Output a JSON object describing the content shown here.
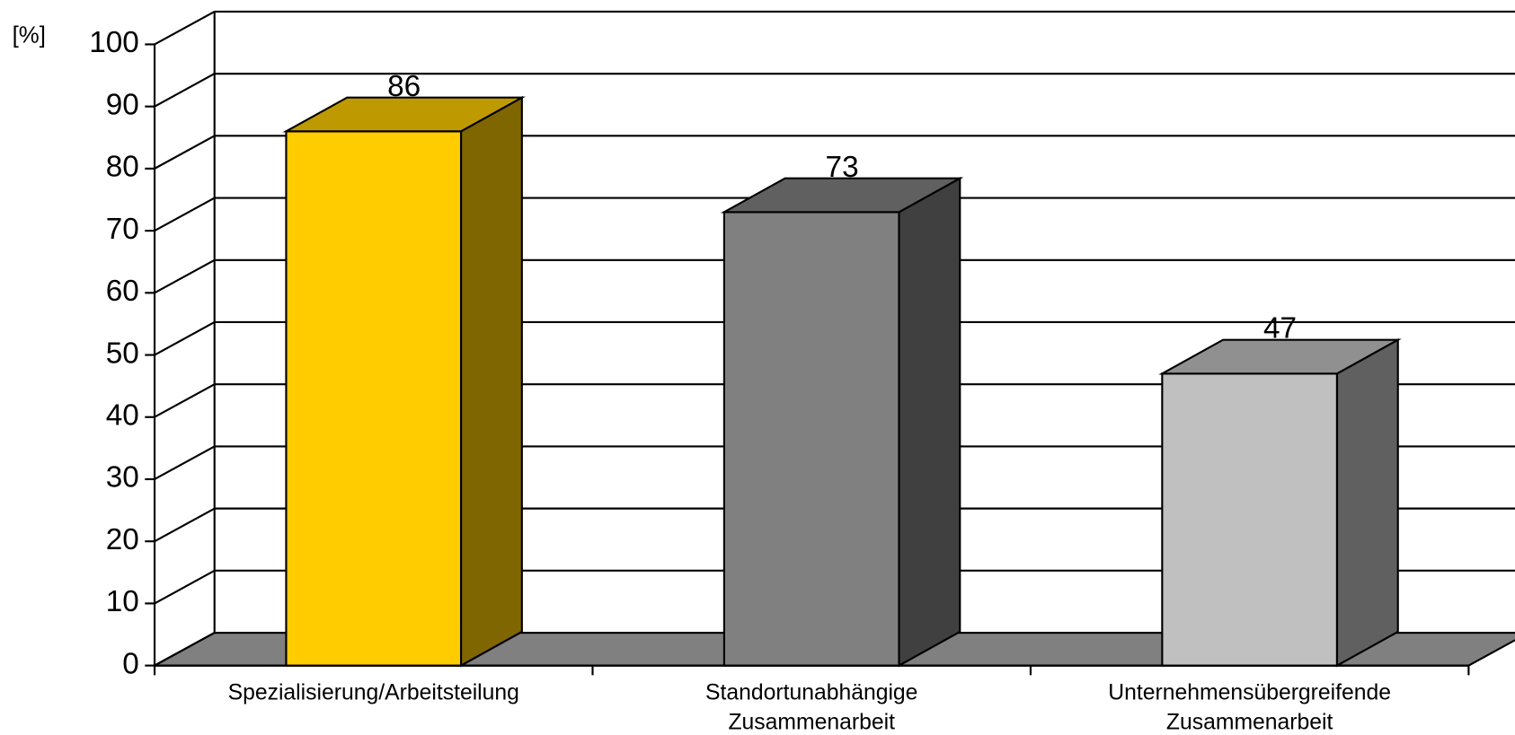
{
  "chart_data": {
    "type": "bar3d",
    "y_unit": "[%]",
    "categories": [
      [
        "Spezialisierung/Arbeitsteilung"
      ],
      [
        "Standortunabhängige",
        "Zusammenarbeit"
      ],
      [
        "Unternehmensübergreifende",
        "Zusammenarbeit"
      ]
    ],
    "values": [
      86,
      73,
      47
    ],
    "colors": [
      "#ffcc00",
      "#808080",
      "#c0c0c0"
    ],
    "ylim": [
      0,
      100
    ],
    "yticks": [
      0,
      10,
      20,
      30,
      40,
      50,
      60,
      70,
      80,
      90,
      100
    ],
    "grid": true
  }
}
